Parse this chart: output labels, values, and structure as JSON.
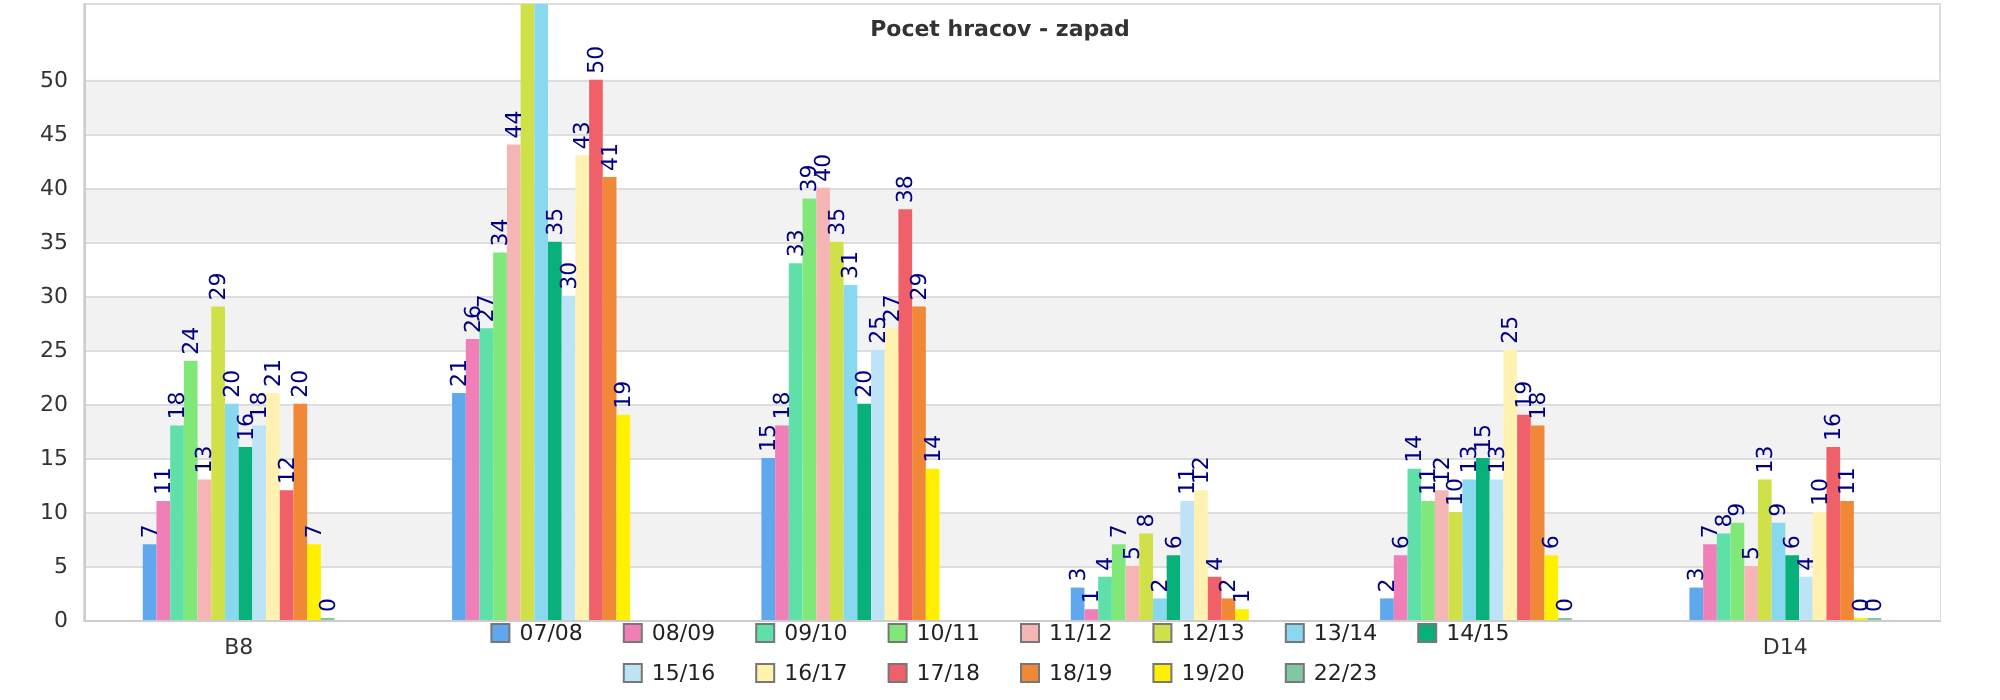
{
  "chart_data": {
    "type": "bar",
    "title": "Pocet hracov - zapad",
    "categories": [
      "B8",
      null,
      null,
      null,
      null,
      "D14"
    ],
    "ylim": [
      0,
      57
    ],
    "yticks": [
      0,
      5,
      10,
      15,
      20,
      25,
      30,
      35,
      40,
      45,
      50
    ],
    "grid": "y",
    "legend": "bottom",
    "series": [
      {
        "name": "07/08",
        "color": "#5fa8ee",
        "values": [
          7,
          21,
          15,
          3,
          2,
          3
        ],
        "value_labels": [
          "7",
          "21",
          "15",
          "3",
          "2",
          "3"
        ]
      },
      {
        "name": "08/09",
        "color": "#f07fb8",
        "values": [
          11,
          26,
          18,
          1,
          6,
          7
        ],
        "value_labels": [
          "11",
          "26",
          "18",
          "1",
          "6",
          "7"
        ]
      },
      {
        "name": "09/10",
        "color": "#5fe0a8",
        "values": [
          18,
          27,
          33,
          4,
          14,
          8
        ],
        "value_labels": [
          "18",
          "27",
          "33",
          "4",
          "14",
          "8"
        ]
      },
      {
        "name": "10/11",
        "color": "#80e878",
        "values": [
          24,
          34,
          39,
          7,
          11,
          9
        ],
        "value_labels": [
          "24",
          "34",
          "39",
          "7",
          "11",
          "9"
        ]
      },
      {
        "name": "11/12",
        "color": "#f5b5b5",
        "values": [
          13,
          44,
          40,
          5,
          12,
          5
        ],
        "value_labels": [
          "13",
          "44",
          "40",
          "5",
          "12",
          "5"
        ]
      },
      {
        "name": "12/13",
        "color": "#d0e048",
        "values": [
          29,
          57,
          35,
          8,
          10,
          13
        ],
        "value_labels": [
          "29",
          null,
          "35",
          "8",
          "10",
          "13"
        ]
      },
      {
        "name": "13/14",
        "color": "#88d8f0",
        "values": [
          20,
          57,
          31,
          2,
          13,
          9
        ],
        "value_labels": [
          "20",
          null,
          "31",
          "2",
          "13",
          "9"
        ]
      },
      {
        "name": "14/15",
        "color": "#08b07a",
        "values": [
          16,
          35,
          20,
          6,
          15,
          6
        ],
        "value_labels": [
          "16",
          "35",
          "20",
          "6",
          "15",
          "6"
        ]
      },
      {
        "name": "15/16",
        "color": "#bde3f7",
        "values": [
          18,
          30,
          25,
          11,
          13,
          4
        ],
        "value_labels": [
          "18",
          "30",
          "25",
          "11",
          "13",
          "4"
        ]
      },
      {
        "name": "16/17",
        "color": "#fff2b0",
        "values": [
          21,
          43,
          27,
          12,
          25,
          10
        ],
        "value_labels": [
          "21",
          "43",
          "27",
          "12",
          "25",
          "10"
        ]
      },
      {
        "name": "17/18",
        "color": "#f06068",
        "values": [
          12,
          50,
          38,
          4,
          19,
          16
        ],
        "value_labels": [
          "12",
          "50",
          "38",
          "4",
          "19",
          "16"
        ]
      },
      {
        "name": "18/19",
        "color": "#f08838",
        "values": [
          20,
          41,
          29,
          2,
          18,
          11
        ],
        "value_labels": [
          "20",
          "41",
          "29",
          "2",
          "18",
          "11"
        ]
      },
      {
        "name": "19/20",
        "color": "#fff000",
        "values": [
          7,
          19,
          14,
          1,
          6,
          0
        ],
        "value_labels": [
          "7",
          "19",
          "14",
          "1",
          "6",
          "0"
        ]
      },
      {
        "name": "22/23",
        "color": "#80c8a0",
        "values": [
          0,
          null,
          null,
          null,
          0,
          0
        ],
        "value_labels": [
          "0",
          null,
          null,
          null,
          "0",
          "0"
        ]
      }
    ]
  }
}
